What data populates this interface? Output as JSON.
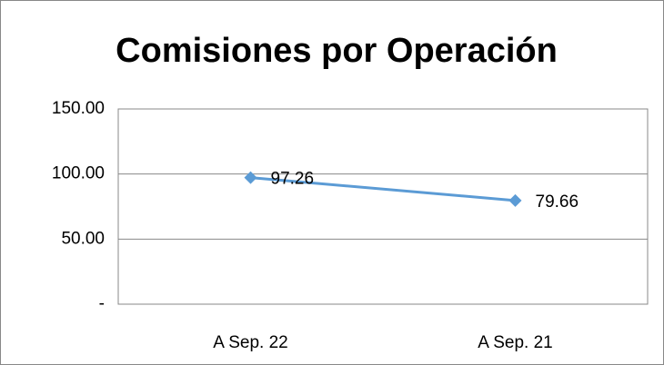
{
  "chart_data": {
    "type": "line",
    "title": "Comisiones por Operación",
    "categories": [
      "A Sep. 22",
      "A Sep. 21"
    ],
    "series": [
      {
        "name": "Comisiones por Operación",
        "color": "#5b9bd5",
        "values": [
          97.26,
          79.66
        ]
      }
    ],
    "ylim": [
      0,
      150
    ],
    "yticks": [
      {
        "value": 0,
        "label": "-"
      },
      {
        "value": 50,
        "label": "50.00"
      },
      {
        "value": 100,
        "label": "100.00"
      },
      {
        "value": 150,
        "label": "150.00"
      }
    ],
    "grid": true
  }
}
